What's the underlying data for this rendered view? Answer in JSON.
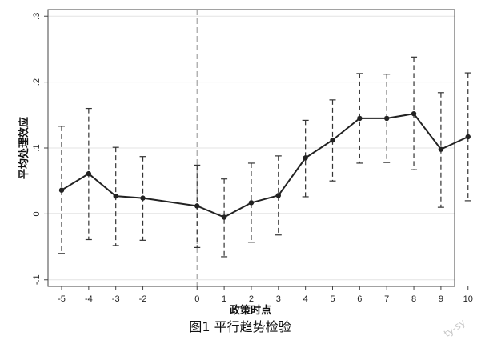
{
  "chart_data": {
    "type": "line",
    "xlabel": "政策时点",
    "ylabel": "平均处理效应",
    "caption": "图1  平行趋势检验",
    "watermark": "ty-sy",
    "x": [
      -5,
      -4,
      -3,
      -2,
      0,
      1,
      2,
      3,
      4,
      5,
      6,
      7,
      8,
      9,
      10
    ],
    "x_ticks": [
      -5,
      -4,
      -3,
      -2,
      0,
      1,
      2,
      3,
      4,
      5,
      6,
      7,
      8,
      9,
      10
    ],
    "y_ticks": [
      -0.1,
      0,
      0.1,
      0.2,
      0.3
    ],
    "y_tick_labels": [
      "-.1",
      "0",
      ".1",
      ".2",
      ".3"
    ],
    "ylim": [
      -0.11,
      0.31
    ],
    "reference_line_x": 0,
    "reference_line_y": 0,
    "grid": true,
    "series": [
      {
        "values": [
          0.036,
          0.061,
          0.027,
          0.024,
          0.012,
          -0.005,
          0.017,
          0.028,
          0.085,
          0.112,
          0.145,
          0.145,
          0.152,
          0.098,
          0.117
        ],
        "ci_low": [
          -0.06,
          -0.039,
          -0.048,
          -0.04,
          -0.051,
          -0.065,
          -0.043,
          -0.032,
          0.026,
          0.05,
          0.077,
          0.078,
          0.067,
          0.01,
          0.02
        ],
        "ci_high": [
          0.133,
          0.16,
          0.101,
          0.087,
          0.074,
          0.053,
          0.077,
          0.088,
          0.142,
          0.173,
          0.213,
          0.212,
          0.238,
          0.184,
          0.214
        ]
      }
    ]
  }
}
